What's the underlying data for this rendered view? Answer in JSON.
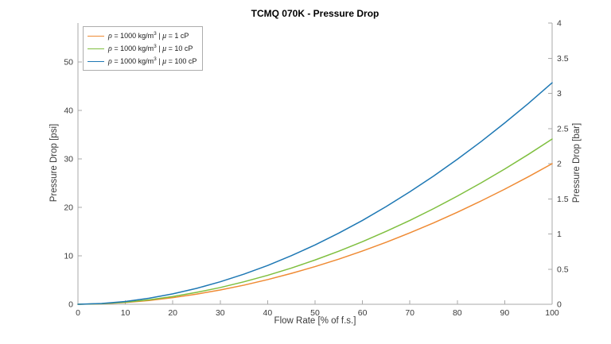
{
  "title": "TCMQ 070K - Pressure Drop",
  "axes": {
    "x": {
      "label": "Flow Rate [% of f.s.]",
      "ticks": [
        0,
        10,
        20,
        30,
        40,
        50,
        60,
        70,
        80,
        90,
        100
      ],
      "range": [
        0,
        100
      ]
    },
    "y_left": {
      "label": "Pressure Drop [psi]",
      "ticks": [
        0,
        10,
        20,
        30,
        40,
        50
      ],
      "range": [
        0,
        58.015
      ]
    },
    "y_right": {
      "label": "Pressure Drop [bar]",
      "ticks": [
        0,
        0.5,
        1,
        1.5,
        2,
        2.5,
        3,
        3.5,
        4
      ],
      "range": [
        0,
        4
      ]
    }
  },
  "legend": {
    "entries": [
      {
        "sym1": "ρ",
        "mid": " = 1000 kg/m",
        "sup": "3",
        "bar": " | ",
        "sym2": "μ",
        "tail": " = 1 cP",
        "color": "#EF8A33"
      },
      {
        "sym1": "ρ",
        "mid": " = 1000 kg/m",
        "sup": "3",
        "bar": " | ",
        "sym2": "μ",
        "tail": " = 10 cP",
        "color": "#7FBF3F"
      },
      {
        "sym1": "ρ",
        "mid": " = 1000 kg/m",
        "sup": "3",
        "bar": " | ",
        "sym2": "μ",
        "tail": " = 100 cP",
        "color": "#1E78B4"
      }
    ]
  },
  "chart_data": {
    "type": "line",
    "title": "TCMQ 070K - Pressure Drop",
    "xlabel": "Flow Rate [% of f.s.]",
    "ylabel_left": "Pressure Drop [psi]",
    "ylabel_right": "Pressure Drop [bar]",
    "xlim": [
      0,
      100
    ],
    "ylim_right_bar": [
      0,
      4
    ],
    "ylim_left_psi": [
      0,
      58
    ],
    "psi_per_bar": 14.504,
    "grid": false,
    "legend_position": "top-left",
    "units": "bar (right axis); psi = bar × 14.504",
    "x": [
      0,
      5,
      10,
      15,
      20,
      25,
      30,
      35,
      40,
      45,
      50,
      55,
      60,
      65,
      70,
      75,
      80,
      85,
      90,
      95,
      100
    ],
    "series": [
      {
        "name": "ρ = 1000 kg/m3 | μ = 1 cP",
        "color": "#EF8A33",
        "values": [
          0,
          0.007,
          0.025,
          0.054,
          0.094,
          0.144,
          0.203,
          0.272,
          0.351,
          0.439,
          0.536,
          0.642,
          0.758,
          0.882,
          1.016,
          1.158,
          1.309,
          1.469,
          1.637,
          1.814,
          2.0
        ]
      },
      {
        "name": "ρ = 1000 kg/m3 | μ = 10 cP",
        "color": "#7FBF3F",
        "values": [
          0,
          0.008,
          0.03,
          0.064,
          0.11,
          0.169,
          0.238,
          0.32,
          0.412,
          0.515,
          0.63,
          0.755,
          0.89,
          1.037,
          1.193,
          1.36,
          1.538,
          1.726,
          1.924,
          2.132,
          2.35
        ]
      },
      {
        "name": "ρ = 1000 kg/m3 | μ = 100 cP",
        "color": "#1E78B4",
        "values": [
          0,
          0.011,
          0.04,
          0.086,
          0.148,
          0.226,
          0.32,
          0.429,
          0.552,
          0.691,
          0.844,
          1.012,
          1.193,
          1.39,
          1.6,
          1.824,
          2.062,
          2.313,
          2.579,
          2.857,
          3.15
        ]
      }
    ]
  },
  "style": {
    "spine_color": "#A9A9A9",
    "tick_label_color": "#3A3A3A"
  }
}
